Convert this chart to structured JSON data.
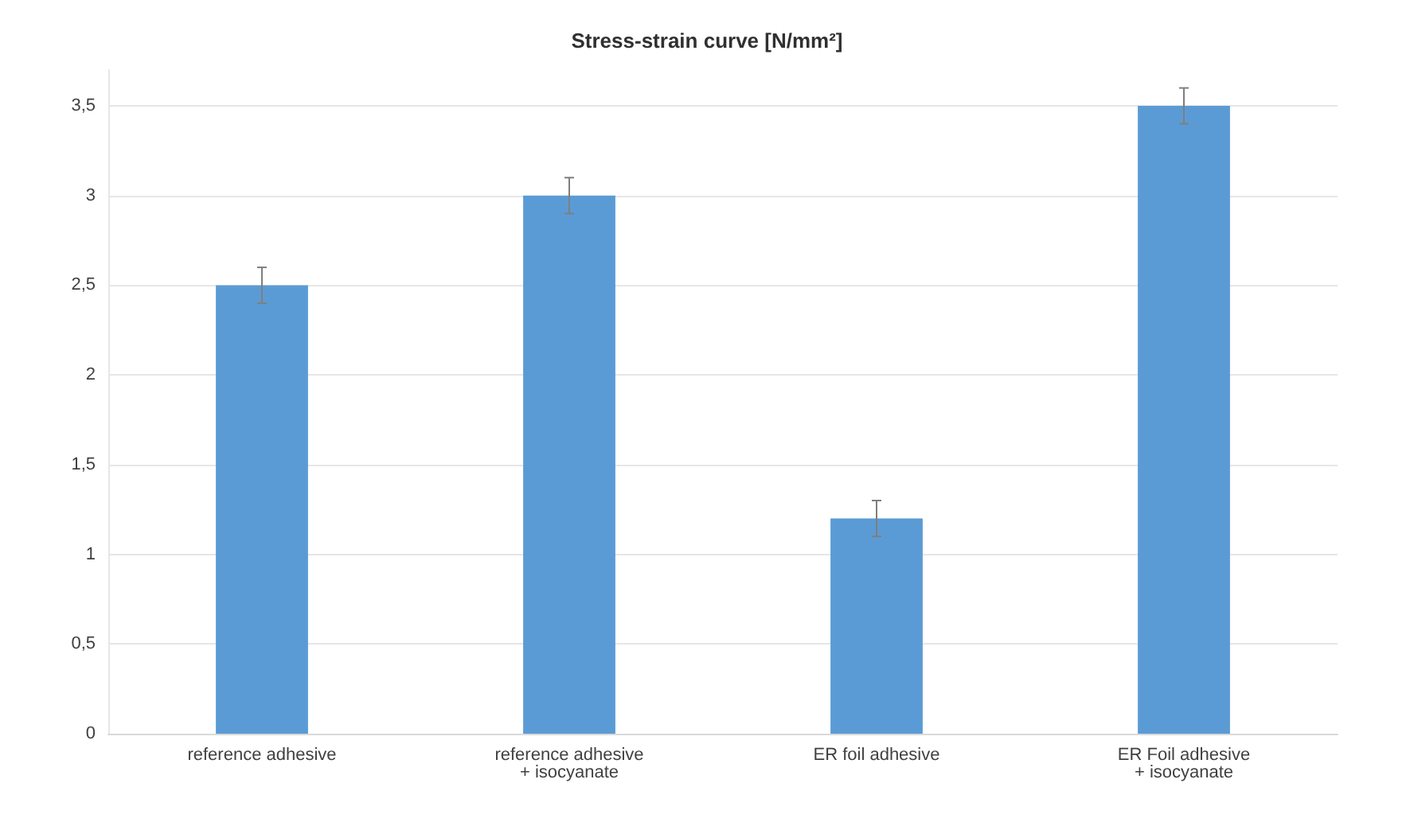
{
  "chart_data": {
    "type": "bar",
    "title": "Stress-strain curve [N/mm²]",
    "categories": [
      "reference adhesive",
      "reference adhesive\n+ isocyanate",
      "ER foil adhesive",
      "ER Foil adhesive\n+ isocyanate"
    ],
    "values": [
      2.5,
      3.0,
      1.2,
      3.5
    ],
    "errors": [
      0.1,
      0.1,
      0.1,
      0.1
    ],
    "color": "#5b9bd5",
    "ylim": [
      0,
      3.7
    ],
    "yticks": [
      0,
      {
        "value": 0.5,
        "label": "0,5"
      },
      1,
      {
        "value": 1.5,
        "label": "1,5"
      },
      2,
      {
        "value": 2.5,
        "label": "2,5"
      },
      3,
      {
        "value": 3.5,
        "label": "3,5"
      }
    ],
    "grid": "y"
  }
}
